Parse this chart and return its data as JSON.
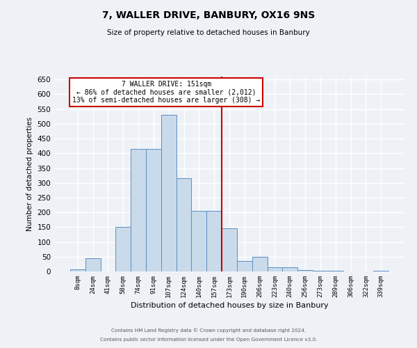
{
  "title": "7, WALLER DRIVE, BANBURY, OX16 9NS",
  "subtitle": "Size of property relative to detached houses in Banbury",
  "xlabel": "Distribution of detached houses by size in Banbury",
  "ylabel": "Number of detached properties",
  "bar_labels": [
    "8sqm",
    "24sqm",
    "41sqm",
    "58sqm",
    "74sqm",
    "91sqm",
    "107sqm",
    "124sqm",
    "140sqm",
    "157sqm",
    "173sqm",
    "190sqm",
    "206sqm",
    "223sqm",
    "240sqm",
    "256sqm",
    "273sqm",
    "289sqm",
    "306sqm",
    "322sqm",
    "339sqm"
  ],
  "bar_heights": [
    8,
    45,
    0,
    150,
    415,
    415,
    530,
    315,
    205,
    205,
    145,
    35,
    50,
    15,
    15,
    5,
    3,
    2,
    1,
    1,
    2
  ],
  "bar_color": "#c9daea",
  "bar_edge_color": "#5a8fc2",
  "background_color": "#eef2f7",
  "grid_color": "#ffffff",
  "vline_x": 9.5,
  "vline_color": "#cc0000",
  "ylim": [
    0,
    660
  ],
  "yticks": [
    0,
    50,
    100,
    150,
    200,
    250,
    300,
    350,
    400,
    450,
    500,
    550,
    600,
    650
  ],
  "annotation_title": "7 WALLER DRIVE: 151sqm",
  "annotation_line1": "← 86% of detached houses are smaller (2,012)",
  "annotation_line2": "13% of semi-detached houses are larger (308) →",
  "annotation_box_color": "#ffffff",
  "annotation_box_edge": "#cc0000",
  "footer1": "Contains HM Land Registry data © Crown copyright and database right 2024.",
  "footer2": "Contains public sector information licensed under the Open Government Licence v3.0."
}
